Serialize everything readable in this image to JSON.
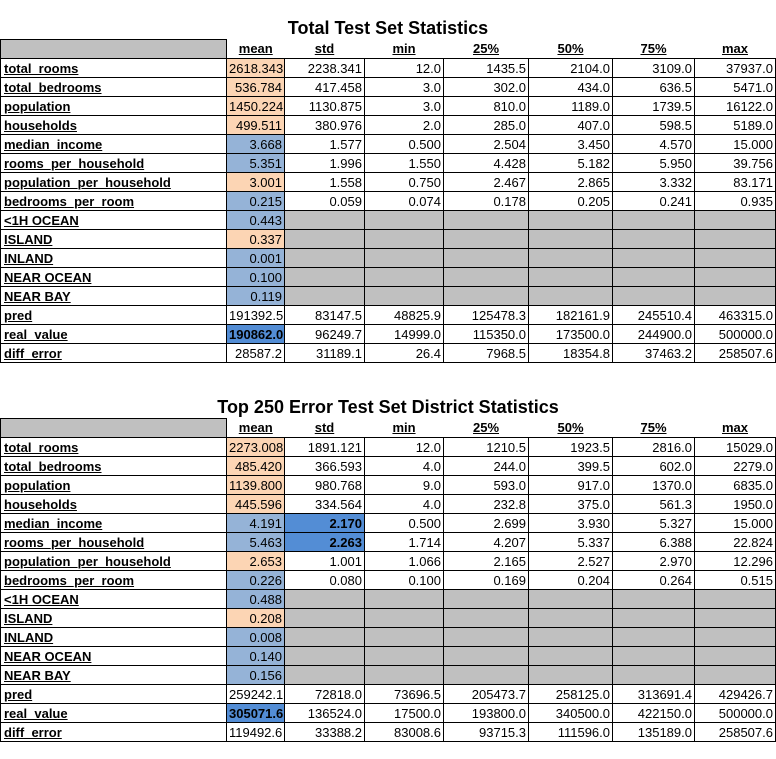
{
  "columns": [
    "mean",
    "std",
    "min",
    "25%",
    "50%",
    "75%",
    "max"
  ],
  "tables": [
    {
      "title": "Total Test Set Statistics",
      "rows": [
        {
          "label": "total_rooms",
          "values": [
            "2618.343",
            "2238.341",
            "12.0",
            "1435.5",
            "2104.0",
            "3109.0",
            "37937.0"
          ],
          "mean_color": "orange"
        },
        {
          "label": "total_bedrooms",
          "values": [
            "536.784",
            "417.458",
            "3.0",
            "302.0",
            "434.0",
            "636.5",
            "5471.0"
          ],
          "mean_color": "orange"
        },
        {
          "label": "population",
          "values": [
            "1450.224",
            "1130.875",
            "3.0",
            "810.0",
            "1189.0",
            "1739.5",
            "16122.0"
          ],
          "mean_color": "orange"
        },
        {
          "label": "households",
          "values": [
            "499.511",
            "380.976",
            "2.0",
            "285.0",
            "407.0",
            "598.5",
            "5189.0"
          ],
          "mean_color": "orange"
        },
        {
          "label": "median_income",
          "values": [
            "3.668",
            "1.577",
            "0.500",
            "2.504",
            "3.450",
            "4.570",
            "15.000"
          ],
          "mean_color": "blue"
        },
        {
          "label": "rooms_per_household",
          "values": [
            "5.351",
            "1.996",
            "1.550",
            "4.428",
            "5.182",
            "5.950",
            "39.756"
          ],
          "mean_color": "blue"
        },
        {
          "label": "population_per_household",
          "values": [
            "3.001",
            "1.558",
            "0.750",
            "2.467",
            "2.865",
            "3.332",
            "83.171"
          ],
          "mean_color": "orange"
        },
        {
          "label": "bedrooms_per_room",
          "values": [
            "0.215",
            "0.059",
            "0.074",
            "0.178",
            "0.205",
            "0.241",
            "0.935"
          ],
          "mean_color": "blue"
        },
        {
          "label": "<1H OCEAN",
          "values": [
            "0.443",
            "",
            "",
            "",
            "",
            "",
            ""
          ],
          "mean_color": "blue",
          "gray_rest": true
        },
        {
          "label": "ISLAND",
          "values": [
            "0.337",
            "",
            "",
            "",
            "",
            "",
            ""
          ],
          "mean_color": "orange",
          "gray_rest": true
        },
        {
          "label": "INLAND",
          "values": [
            "0.001",
            "",
            "",
            "",
            "",
            "",
            ""
          ],
          "mean_color": "blue",
          "gray_rest": true
        },
        {
          "label": "NEAR OCEAN",
          "values": [
            "0.100",
            "",
            "",
            "",
            "",
            "",
            ""
          ],
          "mean_color": "blue",
          "gray_rest": true
        },
        {
          "label": "NEAR BAY",
          "values": [
            "0.119",
            "",
            "",
            "",
            "",
            "",
            ""
          ],
          "mean_color": "blue",
          "gray_rest": true
        },
        {
          "label": "pred",
          "values": [
            "191392.5",
            "83147.5",
            "48825.9",
            "125478.3",
            "182161.9",
            "245510.4",
            "463315.0"
          ],
          "mean_color": ""
        },
        {
          "label": "real_value",
          "values": [
            "190862.0",
            "96249.7",
            "14999.0",
            "115350.0",
            "173500.0",
            "244900.0",
            "500000.0"
          ],
          "mean_color": "dblue"
        },
        {
          "label": "diff_error",
          "values": [
            "28587.2",
            "31189.1",
            "26.4",
            "7968.5",
            "18354.8",
            "37463.2",
            "258507.6"
          ],
          "mean_color": ""
        }
      ]
    },
    {
      "title": "Top 250 Error Test Set District  Statistics",
      "rows": [
        {
          "label": "total_rooms",
          "values": [
            "2273.008",
            "1891.121",
            "12.0",
            "1210.5",
            "1923.5",
            "2816.0",
            "15029.0"
          ],
          "mean_color": "orange"
        },
        {
          "label": "total_bedrooms",
          "values": [
            "485.420",
            "366.593",
            "4.0",
            "244.0",
            "399.5",
            "602.0",
            "2279.0"
          ],
          "mean_color": "orange"
        },
        {
          "label": "population",
          "values": [
            "1139.800",
            "980.768",
            "9.0",
            "593.0",
            "917.0",
            "1370.0",
            "6835.0"
          ],
          "mean_color": "orange"
        },
        {
          "label": "households",
          "values": [
            "445.596",
            "334.564",
            "4.0",
            "232.8",
            "375.0",
            "561.3",
            "1950.0"
          ],
          "mean_color": "orange"
        },
        {
          "label": "median_income",
          "values": [
            "4.191",
            "2.170",
            "0.500",
            "2.699",
            "3.930",
            "5.327",
            "15.000"
          ],
          "mean_color": "blue",
          "std_color": "dblue"
        },
        {
          "label": "rooms_per_household",
          "values": [
            "5.463",
            "2.263",
            "1.714",
            "4.207",
            "5.337",
            "6.388",
            "22.824"
          ],
          "mean_color": "blue",
          "std_color": "dblue"
        },
        {
          "label": "population_per_household",
          "values": [
            "2.653",
            "1.001",
            "1.066",
            "2.165",
            "2.527",
            "2.970",
            "12.296"
          ],
          "mean_color": "orange"
        },
        {
          "label": "bedrooms_per_room",
          "values": [
            "0.226",
            "0.080",
            "0.100",
            "0.169",
            "0.204",
            "0.264",
            "0.515"
          ],
          "mean_color": "blue"
        },
        {
          "label": "<1H OCEAN",
          "values": [
            "0.488",
            "",
            "",
            "",
            "",
            "",
            ""
          ],
          "mean_color": "blue",
          "gray_rest": true
        },
        {
          "label": "ISLAND",
          "values": [
            "0.208",
            "",
            "",
            "",
            "",
            "",
            ""
          ],
          "mean_color": "orange",
          "gray_rest": true
        },
        {
          "label": "INLAND",
          "values": [
            "0.008",
            "",
            "",
            "",
            "",
            "",
            ""
          ],
          "mean_color": "blue",
          "gray_rest": true
        },
        {
          "label": "NEAR OCEAN",
          "values": [
            "0.140",
            "",
            "",
            "",
            "",
            "",
            ""
          ],
          "mean_color": "blue",
          "gray_rest": true
        },
        {
          "label": "NEAR BAY",
          "values": [
            "0.156",
            "",
            "",
            "",
            "",
            "",
            ""
          ],
          "mean_color": "blue",
          "gray_rest": true
        },
        {
          "label": "pred",
          "values": [
            "259242.1",
            "72818.0",
            "73696.5",
            "205473.7",
            "258125.0",
            "313691.4",
            "429426.7"
          ],
          "mean_color": ""
        },
        {
          "label": "real_value",
          "values": [
            "305071.6",
            "136524.0",
            "17500.0",
            "193800.0",
            "340500.0",
            "422150.0",
            "500000.0"
          ],
          "mean_color": "dblue"
        },
        {
          "label": "diff_error",
          "values": [
            "119492.6",
            "33388.2",
            "83008.6",
            "93715.3",
            "111596.0",
            "135189.0",
            "258507.6"
          ],
          "mean_color": ""
        }
      ]
    }
  ]
}
